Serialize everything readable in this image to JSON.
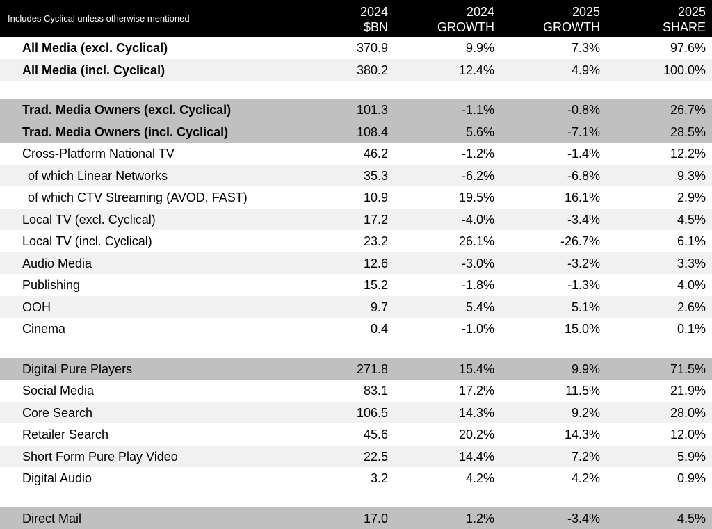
{
  "header": {
    "note": "Includes Cyclical unless otherwise mentioned",
    "col1": [
      "2024",
      "$BN"
    ],
    "col2": [
      "2024",
      "GROWTH"
    ],
    "col3": [
      "2025",
      "GROWTH"
    ],
    "col4": [
      "2025",
      "SHARE"
    ]
  },
  "rows": [
    {
      "label": "All Media (excl. Cyclical)",
      "v1": "370.9",
      "v2": "9.9%",
      "v3": "7.3%",
      "v4": "97.6%"
    },
    {
      "label": "All Media (incl. Cyclical)",
      "v1": "380.2",
      "v2": "12.4%",
      "v3": "4.9%",
      "v4": "100.0%"
    },
    {
      "label": "Trad. Media Owners (excl. Cyclical)",
      "v1": "101.3",
      "v2": "-1.1%",
      "v3": "-0.8%",
      "v4": "26.7%"
    },
    {
      "label": "Trad. Media Owners (incl. Cyclical)",
      "v1": "108.4",
      "v2": "5.6%",
      "v3": "-7.1%",
      "v4": "28.5%"
    },
    {
      "label": "Cross-Platform National TV",
      "v1": "46.2",
      "v2": "-1.2%",
      "v3": "-1.4%",
      "v4": "12.2%"
    },
    {
      "label": "of which Linear Networks",
      "v1": "35.3",
      "v2": "-6.2%",
      "v3": "-6.8%",
      "v4": "9.3%"
    },
    {
      "label": "of which CTV Streaming (AVOD, FAST)",
      "v1": "10.9",
      "v2": "19.5%",
      "v3": "16.1%",
      "v4": "2.9%"
    },
    {
      "label": "Local TV (excl. Cyclical)",
      "v1": "17.2",
      "v2": "-4.0%",
      "v3": "-3.4%",
      "v4": "4.5%"
    },
    {
      "label": "Local TV (incl. Cyclical)",
      "v1": "23.2",
      "v2": "26.1%",
      "v3": "-26.7%",
      "v4": "6.1%"
    },
    {
      "label": "Audio Media",
      "v1": "12.6",
      "v2": "-3.0%",
      "v3": "-3.2%",
      "v4": "3.3%"
    },
    {
      "label": "Publishing",
      "v1": "15.2",
      "v2": "-1.8%",
      "v3": "-1.3%",
      "v4": "4.0%"
    },
    {
      "label": "OOH",
      "v1": "9.7",
      "v2": "5.4%",
      "v3": "5.1%",
      "v4": "2.6%"
    },
    {
      "label": "Cinema",
      "v1": "0.4",
      "v2": "-1.0%",
      "v3": "15.0%",
      "v4": "0.1%"
    },
    {
      "label": "Digital Pure Players",
      "v1": "271.8",
      "v2": "15.4%",
      "v3": "9.9%",
      "v4": "71.5%"
    },
    {
      "label": "Social Media",
      "v1": "83.1",
      "v2": "17.2%",
      "v3": "11.5%",
      "v4": "21.9%"
    },
    {
      "label": "Core Search",
      "v1": "106.5",
      "v2": "14.3%",
      "v3": "9.2%",
      "v4": "28.0%"
    },
    {
      "label": "Retailer Search",
      "v1": "45.6",
      "v2": "20.2%",
      "v3": "14.3%",
      "v4": "12.0%"
    },
    {
      "label": "Short Form Pure Play Video",
      "v1": "22.5",
      "v2": "14.4%",
      "v3": "7.2%",
      "v4": "5.9%"
    },
    {
      "label": "Digital Audio",
      "v1": "3.2",
      "v2": "4.2%",
      "v3": "4.2%",
      "v4": "0.9%"
    },
    {
      "label": "Direct Mail",
      "v1": "17.0",
      "v2": "1.2%",
      "v3": "-3.4%",
      "v4": "4.5%"
    }
  ]
}
